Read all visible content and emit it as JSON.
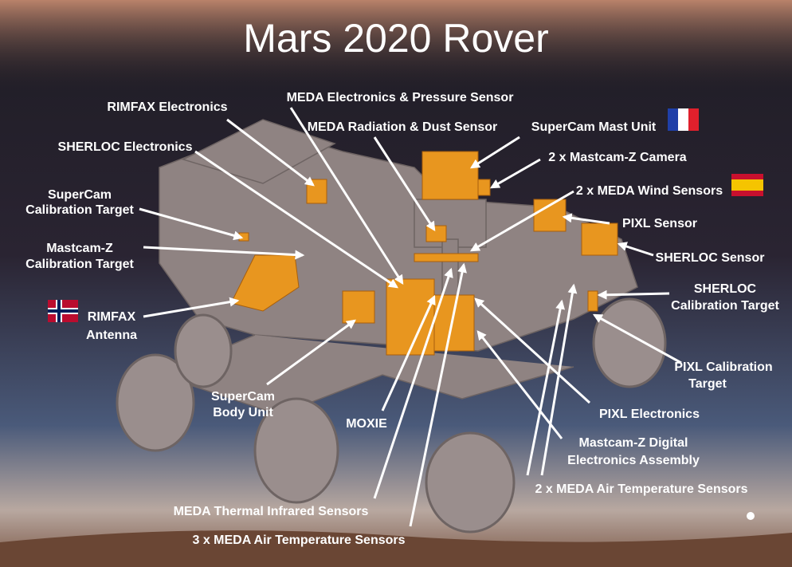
{
  "title": "Mars 2020 Rover",
  "labels": [
    {
      "lines": [
        "RIMFAX Electronics"
      ]
    },
    {
      "lines": [
        "MEDA Electronics & Pressure Sensor"
      ]
    },
    {
      "lines": [
        "MEDA Radiation & Dust Sensor"
      ]
    },
    {
      "lines": [
        "SuperCam Mast Unit"
      ]
    },
    {
      "lines": [
        "SHERLOC Electronics"
      ]
    },
    {
      "lines": [
        "2 x Mastcam-Z Camera"
      ]
    },
    {
      "lines": [
        "SuperCam",
        "Calibration Target"
      ]
    },
    {
      "lines": [
        "2 x MEDA Wind Sensors"
      ]
    },
    {
      "lines": [
        "PIXL Sensor"
      ]
    },
    {
      "lines": [
        "Mastcam-Z",
        "Calibration Target"
      ]
    },
    {
      "lines": [
        "SHERLOC Sensor"
      ]
    },
    {
      "lines": [
        "SHERLOC",
        "Calibration Target"
      ]
    },
    {
      "lines": [
        "RIMFAX",
        "Antenna"
      ]
    },
    {
      "lines": [
        "PIXL Calibration",
        "Target"
      ]
    },
    {
      "lines": [
        "SuperCam",
        "Body Unit"
      ]
    },
    {
      "lines": [
        "MOXIE"
      ]
    },
    {
      "lines": [
        "PIXL Electronics"
      ]
    },
    {
      "lines": [
        "Mastcam-Z Digital",
        "Electronics Assembly"
      ]
    },
    {
      "lines": [
        "2 x MEDA Air Temperature Sensors"
      ]
    },
    {
      "lines": [
        "MEDA Thermal Infrared Sensors"
      ]
    },
    {
      "lines": [
        "3 x MEDA Air Temperature Sensors"
      ]
    }
  ]
}
